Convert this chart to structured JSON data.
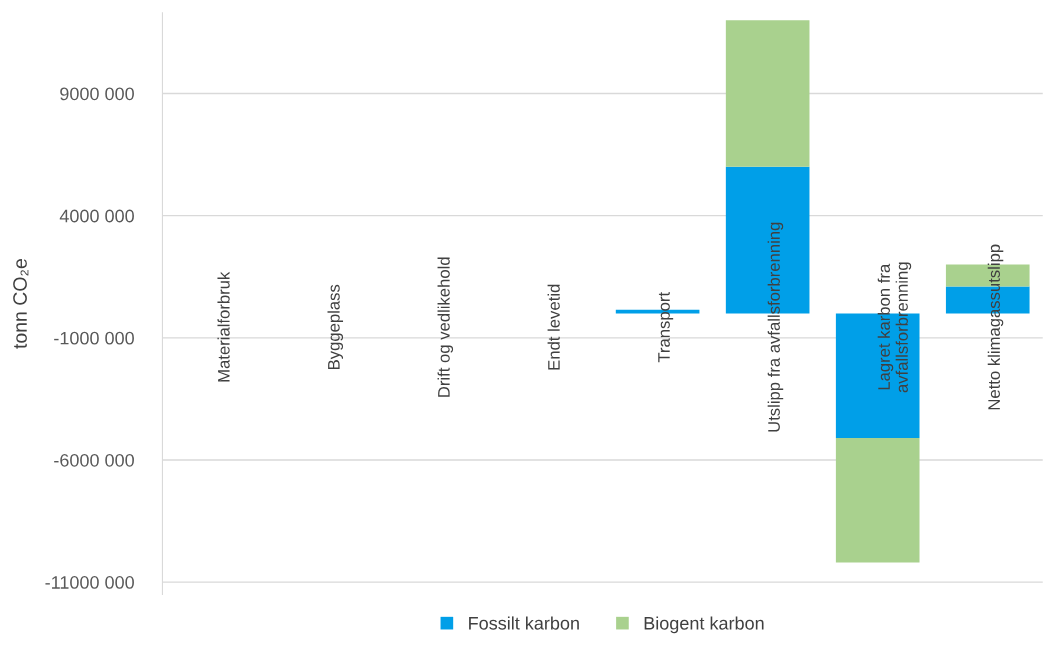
{
  "chart_data": {
    "type": "bar",
    "stacked": true,
    "ylabel": "tonn CO₂e",
    "categories": [
      "Materialforbruk",
      "Byggeplass",
      "Drift og vedlikehold",
      "Endt levetid",
      "Transport",
      "Utslipp fra avfallsforbrenning",
      "Lagret karbon fra\navfallsforbrenning",
      "Netto klimagassutslipp"
    ],
    "series": [
      {
        "name": "Fossilt karbon",
        "color": "#009fe8",
        "values": [
          0,
          0,
          0,
          0,
          150000,
          6000000,
          -5100000,
          1100000
        ]
      },
      {
        "name": "Biogent karbon",
        "color": "#a9d18e",
        "values": [
          0,
          0,
          0,
          0,
          0,
          6000000,
          -5100000,
          900000
        ]
      }
    ],
    "ylim": [
      -11500000,
      12300000
    ],
    "yticks": [
      {
        "value": 9000000,
        "label": "9000 000"
      },
      {
        "value": 4000000,
        "label": "4000 000"
      },
      {
        "value": -1000000,
        "label": "-1000 000"
      },
      {
        "value": -6000000,
        "label": "-6000 000"
      },
      {
        "value": -11000000,
        "label": "-11000 000"
      }
    ],
    "grid": "y",
    "legend": "bottom"
  }
}
